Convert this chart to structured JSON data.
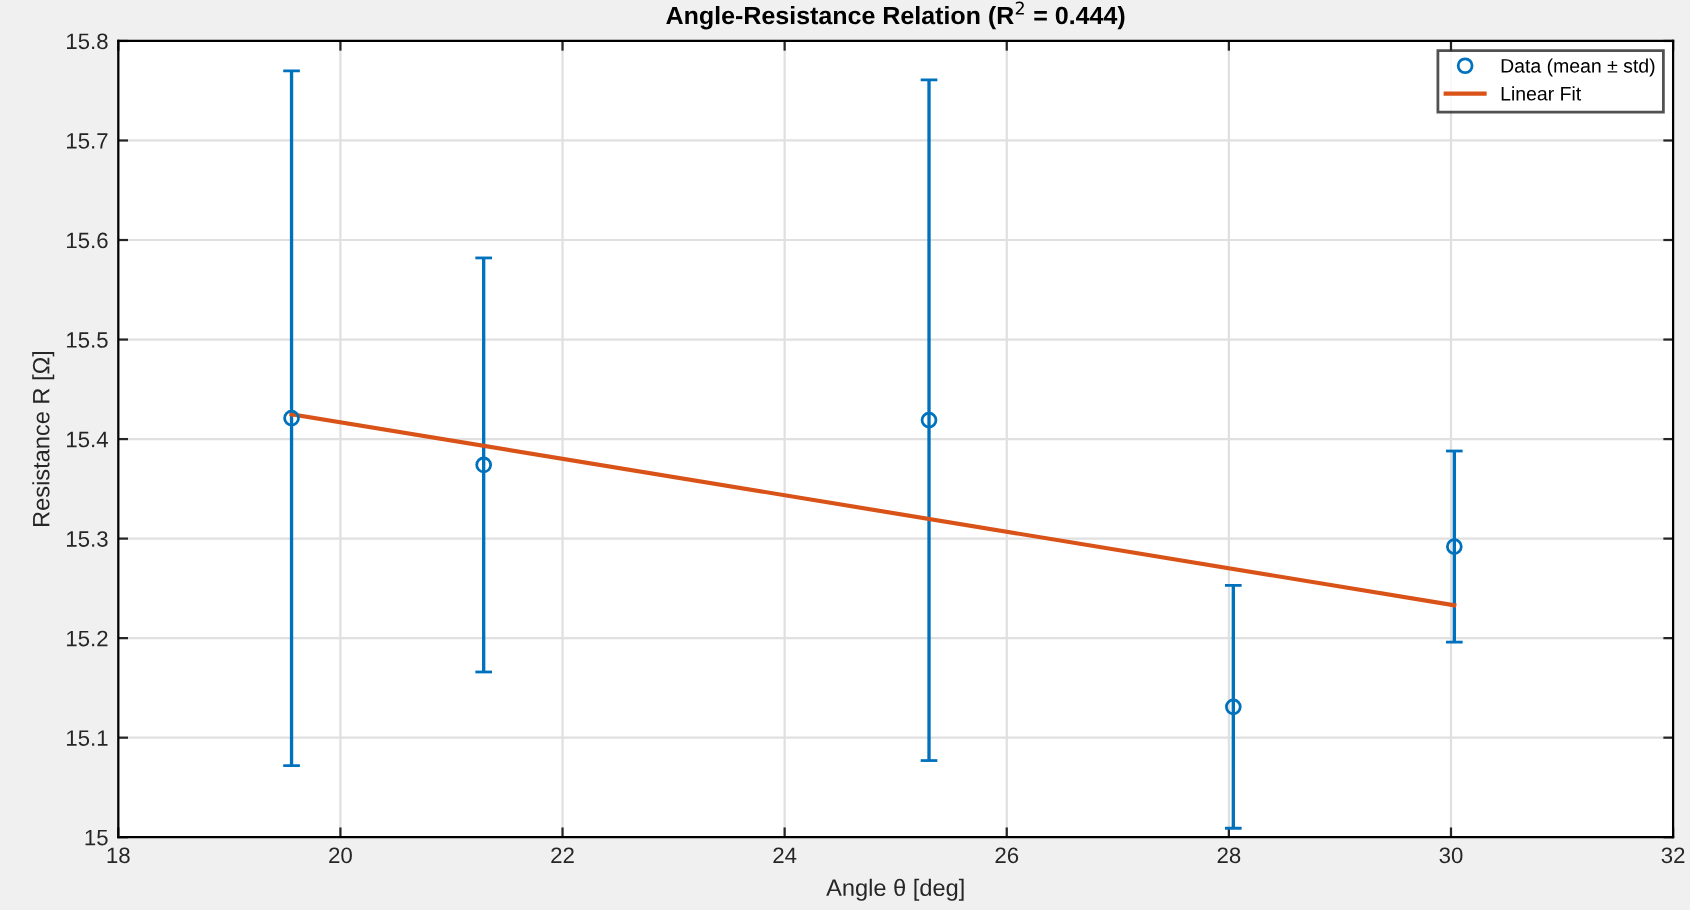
{
  "chart_data": {
    "type": "scatter",
    "title": "Angle-Resistance Relation (R$^{2}$ = 0.444)",
    "xlabel": "Angle θ [deg]",
    "ylabel": "Resistance R [Ω]",
    "xlim": [
      18,
      32
    ],
    "xticks": [
      18,
      20,
      22,
      24,
      26,
      28,
      30,
      32
    ],
    "ylim": [
      15,
      15.8
    ],
    "yticks": [
      15,
      15.1,
      15.2,
      15.3,
      15.4,
      15.5,
      15.6,
      15.7,
      15.8
    ],
    "grid": true,
    "legend": "top right",
    "series": [
      {
        "name": "Data (mean ± std)",
        "marker": "circle",
        "color": "#0072bd",
        "x": [
          19.56,
          21.29,
          25.3,
          28.04,
          30.03
        ],
        "values": [
          15.421,
          15.374,
          15.419,
          15.131,
          15.292
        ],
        "errors": [
          0.349,
          0.208,
          0.342,
          0.122,
          0.096
        ]
      },
      {
        "name": "Linear Fit",
        "type": "line",
        "color": "#d95319",
        "x": [
          19.56,
          30.03
        ],
        "values": [
          15.425,
          15.233
        ]
      }
    ]
  }
}
